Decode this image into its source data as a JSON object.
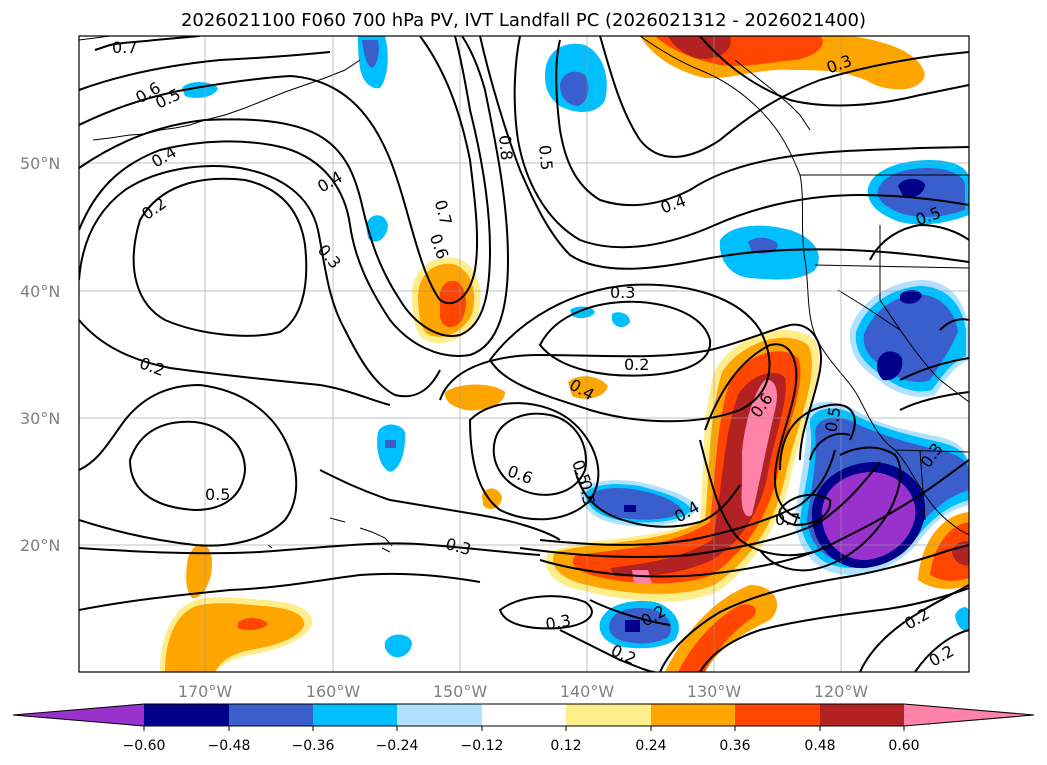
{
  "title": "2026021100 F060 700 hPa PV, IVT Landfall PC (2026021312 - 2026021400)",
  "map": {
    "lat_labels": [
      "50°N",
      "40°N",
      "30°N",
      "20°N"
    ],
    "lon_labels": [
      "170°W",
      "160°W",
      "150°W",
      "140°W",
      "130°W",
      "120°W"
    ],
    "contour_labels": [
      "0.7",
      "0.6",
      "0.5",
      "0.4",
      "0.2",
      "0.4",
      "0.3",
      "0.8",
      "0.5",
      "0.7",
      "0.6",
      "0.4",
      "0.3",
      "0.3",
      "0.2",
      "0.4",
      "0.6",
      "0.5",
      "0.4",
      "0.5",
      "0.3",
      "0.3",
      "0.2",
      "0.2",
      "0.7",
      "0.6",
      "0.5",
      "0.3",
      "0.5",
      "0.2",
      "0.2",
      "0.2"
    ]
  },
  "colorbar": {
    "ticks": [
      "−0.60",
      "−0.48",
      "−0.36",
      "−0.24",
      "−0.12",
      "0.12",
      "0.24",
      "0.36",
      "0.48",
      "0.60"
    ],
    "colors": {
      "lt_m060": "#9932cc",
      "m060_m048": "#00008b",
      "m048_m036": "#3a5fcd",
      "m036_m024": "#00bfff",
      "m024_m012": "#b0e2ff",
      "m012_012": "#ffffff",
      "p012_024": "#ffec8b",
      "p024_036": "#ffa500",
      "p036_048": "#ff4500",
      "p048_060": "#b22222",
      "gt_060": "#ff82ab"
    }
  }
}
